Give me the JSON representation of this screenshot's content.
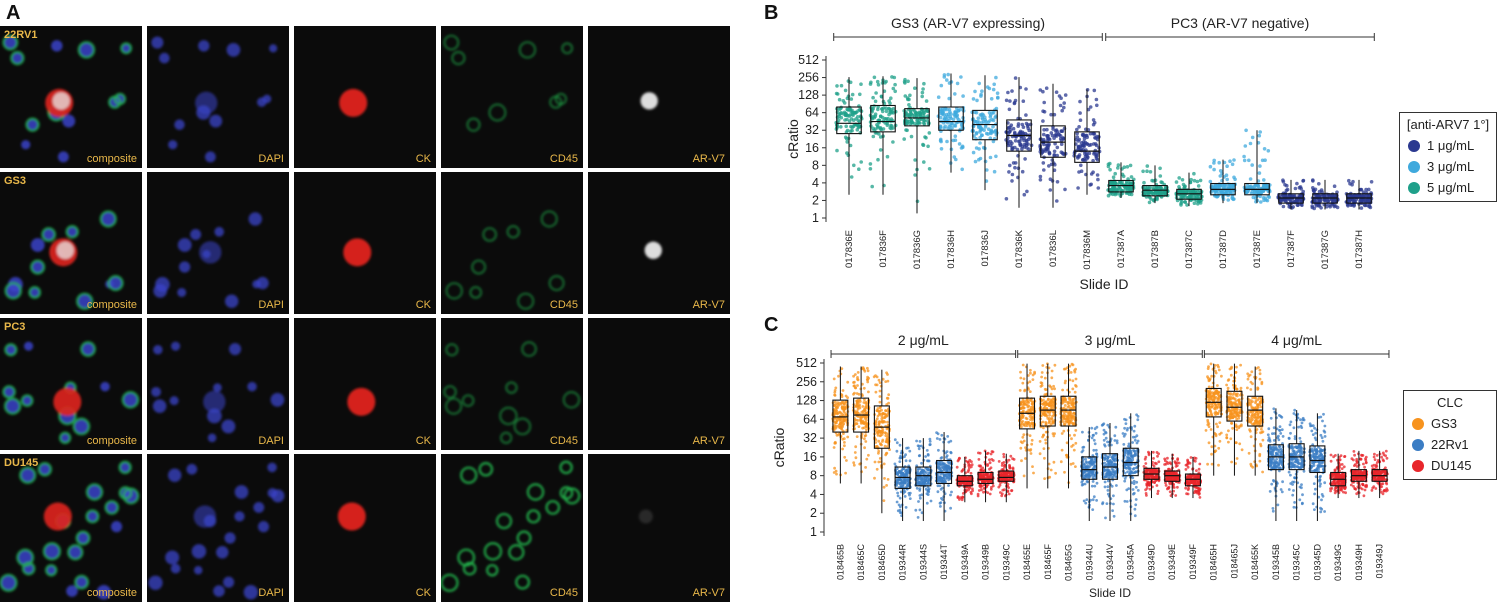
{
  "panel_a": {
    "letter": "A",
    "rows": [
      {
        "label": "22RV1",
        "cells": [
          "composite",
          "DAPI",
          "CK",
          "CD45",
          "AR-V7"
        ],
        "av7_visible": true
      },
      {
        "label": "GS3",
        "cells": [
          "composite",
          "DAPI",
          "CK",
          "CD45",
          "AR-V7"
        ],
        "av7_visible": true
      },
      {
        "label": "PC3",
        "cells": [
          "composite",
          "DAPI",
          "CK",
          "CD45",
          "AR-V7"
        ],
        "av7_visible": false
      },
      {
        "label": "DU145",
        "cells": [
          "composite",
          "DAPI",
          "CK",
          "CD45",
          "AR-V7"
        ],
        "av7_visible": false
      }
    ]
  },
  "chart_data": [
    {
      "panel": "B",
      "type": "box",
      "xlabel": "Slide ID",
      "ylabel": "cRatio",
      "yscale": "log2",
      "yticks": [
        "1",
        "2",
        "4",
        "8",
        "16",
        "32",
        "64",
        "128",
        "256",
        "512"
      ],
      "groups": [
        {
          "label": "GS3 (AR-V7 expressing)",
          "from": 0,
          "to": 7
        },
        {
          "label": "PC3 (AR-V7 negative)",
          "from": 8,
          "to": 15
        }
      ],
      "legend": {
        "title": "[anti-ARV7 1°]",
        "entries": [
          {
            "name": "1 μg/mL",
            "color": "#2b3990"
          },
          {
            "name": "3 μg/mL",
            "color": "#3fa9dd"
          },
          {
            "name": "5 μg/mL",
            "color": "#1fa08a"
          }
        ]
      },
      "categories": [
        "017836E",
        "017836F",
        "017836G",
        "017836H",
        "017836J",
        "017836K",
        "017836L",
        "017836M",
        "017387A",
        "017387B",
        "017387C",
        "017387D",
        "017387E",
        "017387F",
        "017387G",
        "017387H"
      ],
      "series_index": [
        2,
        2,
        2,
        1,
        1,
        0,
        0,
        0,
        2,
        2,
        2,
        1,
        1,
        0,
        0,
        0
      ],
      "boxes": [
        {
          "low": 2.5,
          "q1": 28,
          "median": 42,
          "q3": 80,
          "high": 260
        },
        {
          "low": 2.5,
          "q1": 30,
          "median": 45,
          "q3": 85,
          "high": 270
        },
        {
          "low": 1.2,
          "q1": 38,
          "median": 52,
          "q3": 75,
          "high": 250
        },
        {
          "low": 6,
          "q1": 32,
          "median": 45,
          "q3": 80,
          "high": 300
        },
        {
          "low": 3,
          "q1": 22,
          "median": 40,
          "q3": 70,
          "high": 280
        },
        {
          "low": 1.5,
          "q1": 14,
          "median": 26,
          "q3": 48,
          "high": 260
        },
        {
          "low": 1.5,
          "q1": 11,
          "median": 20,
          "q3": 38,
          "high": 200
        },
        {
          "low": 2.5,
          "q1": 9,
          "median": 14,
          "q3": 30,
          "high": 160
        },
        {
          "low": 2.2,
          "q1": 2.8,
          "median": 3.6,
          "q3": 4.4,
          "high": 9
        },
        {
          "low": 1.8,
          "q1": 2.4,
          "median": 3.0,
          "q3": 3.6,
          "high": 8
        },
        {
          "low": 1.6,
          "q1": 2.1,
          "median": 2.6,
          "q3": 3.1,
          "high": 6
        },
        {
          "low": 1.8,
          "q1": 2.5,
          "median": 3.1,
          "q3": 3.9,
          "high": 10
        },
        {
          "low": 1.8,
          "q1": 2.5,
          "median": 3.1,
          "q3": 3.9,
          "high": 32
        },
        {
          "low": 1.4,
          "q1": 1.8,
          "median": 2.2,
          "q3": 2.6,
          "high": 4.5
        },
        {
          "low": 1.4,
          "q1": 1.8,
          "median": 2.2,
          "q3": 2.6,
          "high": 4.5
        },
        {
          "low": 1.4,
          "q1": 1.8,
          "median": 2.2,
          "q3": 2.6,
          "high": 4.5
        }
      ]
    },
    {
      "panel": "C",
      "type": "box",
      "xlabel": "Slide ID",
      "ylabel": "cRatio",
      "yscale": "log2",
      "yticks": [
        "1",
        "2",
        "4",
        "8",
        "16",
        "32",
        "64",
        "128",
        "256",
        "512"
      ],
      "groups": [
        {
          "label": "2 μg/mL",
          "from": 0,
          "to": 8
        },
        {
          "label": "3 μg/mL",
          "from": 9,
          "to": 17
        },
        {
          "label": "4 μg/mL",
          "from": 18,
          "to": 26
        }
      ],
      "legend": {
        "title": "CLC",
        "entries": [
          {
            "name": "GS3",
            "color": "#f7931e"
          },
          {
            "name": "22Rv1",
            "color": "#3b7dc4"
          },
          {
            "name": "DU145",
            "color": "#e8262b"
          }
        ]
      },
      "categories": [
        "018465B",
        "018465C",
        "018465D",
        "019344R",
        "019344S",
        "019344T",
        "019349A",
        "019349B",
        "019349C",
        "018465E",
        "018465F",
        "018465G",
        "019344U",
        "019344V",
        "019345A",
        "019349D",
        "019349E",
        "019349F",
        "018465H",
        "018465J",
        "018465K",
        "019345B",
        "019345C",
        "019345D",
        "019349G",
        "019349H",
        "019349J"
      ],
      "series_index": [
        0,
        0,
        0,
        1,
        1,
        1,
        2,
        2,
        2,
        0,
        0,
        0,
        1,
        1,
        1,
        2,
        2,
        2,
        0,
        0,
        0,
        1,
        1,
        1,
        2,
        2,
        2
      ],
      "boxes": [
        {
          "low": 6,
          "q1": 40,
          "median": 70,
          "q3": 130,
          "high": 450
        },
        {
          "low": 6,
          "q1": 40,
          "median": 75,
          "q3": 140,
          "high": 450
        },
        {
          "low": 2,
          "q1": 22,
          "median": 48,
          "q3": 105,
          "high": 400
        },
        {
          "low": 1.5,
          "q1": 5,
          "median": 7.5,
          "q3": 11,
          "high": 32
        },
        {
          "low": 1.5,
          "q1": 5.5,
          "median": 8,
          "q3": 11,
          "high": 32
        },
        {
          "low": 1.5,
          "q1": 6,
          "median": 9,
          "q3": 14,
          "high": 40
        },
        {
          "low": 3,
          "q1": 5.5,
          "median": 6.5,
          "q3": 8,
          "high": 16
        },
        {
          "low": 3,
          "q1": 6,
          "median": 7,
          "q3": 9,
          "high": 20
        },
        {
          "low": 3,
          "q1": 6.5,
          "median": 7.5,
          "q3": 9.5,
          "high": 18
        },
        {
          "low": 5,
          "q1": 45,
          "median": 80,
          "q3": 140,
          "high": 500
        },
        {
          "low": 5,
          "q1": 50,
          "median": 90,
          "q3": 150,
          "high": 500
        },
        {
          "low": 5,
          "q1": 50,
          "median": 90,
          "q3": 150,
          "high": 500
        },
        {
          "low": 1.5,
          "q1": 7,
          "median": 10,
          "q3": 16,
          "high": 48
        },
        {
          "low": 1.5,
          "q1": 7,
          "median": 11,
          "q3": 18,
          "high": 56
        },
        {
          "low": 1.5,
          "q1": 8,
          "median": 13,
          "q3": 22,
          "high": 80
        },
        {
          "low": 3.5,
          "q1": 7,
          "median": 8.5,
          "q3": 10.5,
          "high": 20
        },
        {
          "low": 3.5,
          "q1": 6.5,
          "median": 8,
          "q3": 9.5,
          "high": 18
        },
        {
          "low": 3.5,
          "q1": 5.5,
          "median": 7,
          "q3": 8.5,
          "high": 16
        },
        {
          "low": 8,
          "q1": 70,
          "median": 120,
          "q3": 200,
          "high": 500
        },
        {
          "low": 8,
          "q1": 60,
          "median": 100,
          "q3": 180,
          "high": 500
        },
        {
          "low": 8,
          "q1": 50,
          "median": 90,
          "q3": 150,
          "high": 450
        },
        {
          "low": 1.5,
          "q1": 10,
          "median": 16,
          "q3": 25,
          "high": 96
        },
        {
          "low": 1.5,
          "q1": 10,
          "median": 16,
          "q3": 26,
          "high": 90
        },
        {
          "low": 1.5,
          "q1": 9,
          "median": 14,
          "q3": 24,
          "high": 80
        },
        {
          "low": 3.5,
          "q1": 5.5,
          "median": 7,
          "q3": 9,
          "high": 18
        },
        {
          "low": 3.5,
          "q1": 6.5,
          "median": 8,
          "q3": 10,
          "high": 20
        },
        {
          "low": 3.5,
          "q1": 6.5,
          "median": 8,
          "q3": 10,
          "high": 20
        }
      ]
    }
  ]
}
